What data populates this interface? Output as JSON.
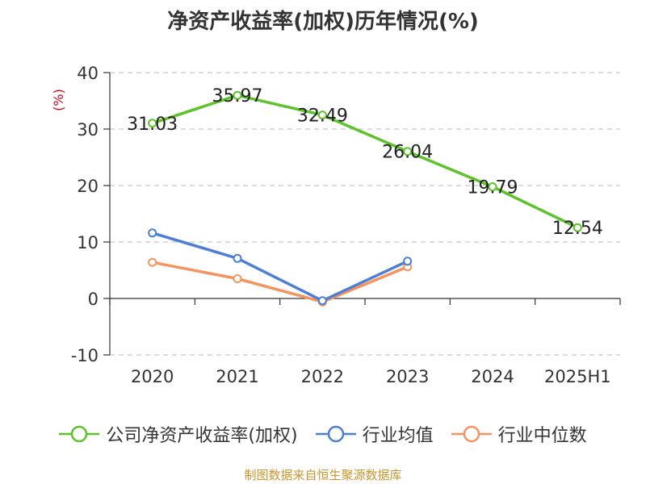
{
  "chart_data": {
    "type": "line",
    "title": "净资产收益率(加权)历年情况(%)",
    "ylabel": "(%)",
    "categories": [
      "2020",
      "2021",
      "2022",
      "2023",
      "2024",
      "2025H1"
    ],
    "yticks": [
      -10,
      0,
      10,
      20,
      30,
      40
    ],
    "ylim": [
      -10,
      40
    ],
    "grid": true,
    "legend_position": "bottom",
    "series": [
      {
        "name": "公司净资产收益率(加权)",
        "color": "#5ec22b",
        "values": [
          31.03,
          35.97,
          32.49,
          26.04,
          19.79,
          12.54
        ],
        "labels": [
          "31.03",
          "35.97",
          "32.49",
          "26.04",
          "19.79",
          "12.54"
        ]
      },
      {
        "name": "行业均值",
        "color": "#4d7fd6",
        "values": [
          11.6,
          7.1,
          -0.4,
          6.6,
          null,
          null
        ]
      },
      {
        "name": "行业中位数",
        "color": "#f59460",
        "values": [
          6.4,
          3.5,
          -0.6,
          5.6,
          null,
          null
        ]
      }
    ]
  },
  "source": "制图数据来自恒生聚源数据库"
}
